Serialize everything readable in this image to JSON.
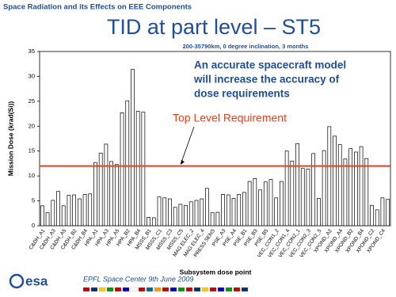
{
  "header": "Space Radiation and its Effects on EEE Components",
  "footer": "EPFL Space Center 9th June 2009",
  "logo": "esa",
  "chart_data": {
    "type": "bar",
    "title": "TID at part level – ST5",
    "subtitle": "200-35790km, 0 degree inclination, 3 months",
    "x_label": "Subsystem dose point",
    "y_label": "Mission Dose (krad(Si))",
    "annotation_lines": [
      "An accurate spacecraft model",
      "will increase the accuracy of",
      "dose requirements"
    ],
    "requirement": {
      "label": "Top Level Requirement",
      "value": 12,
      "color": "#e8401c"
    },
    "categories": [
      "C&DH_A1",
      null,
      "C&DH_A3",
      null,
      "C&DH_A5",
      null,
      "C&DH_B2",
      null,
      "C&DH_B4",
      null,
      "HPA_A1",
      null,
      "HPA_A3",
      null,
      "HPA_A5",
      null,
      "HPA_B2",
      null,
      "HPA_B4",
      null,
      "MSSS_B1",
      null,
      "MSSS_C1",
      null,
      "MSSS_C3",
      null,
      "MSSS_C5",
      null,
      "MAG ELEC_2",
      null,
      "MAG ELEC_4",
      null,
      "PRESS SENS",
      null,
      "PSE_A3",
      null,
      "PSE_A4",
      null,
      "PSE_B1",
      null,
      "PSE_B3",
      null,
      "PSE_B5",
      null,
      "VEC_CON1_2",
      null,
      "VEC_CON1_4",
      null,
      "VEC_CON2_1",
      null,
      "VEC_CON2_3",
      null,
      "VEC_CON2_5",
      null,
      "XPOND_A2",
      null,
      "XPOND_A4",
      null,
      "XPOND_B2",
      null,
      "XPOND_B4",
      null,
      "XPOND_C2",
      null,
      "XPOND_C4",
      null
    ],
    "values": [
      4.0,
      2.6,
      5.1,
      6.9,
      4.0,
      6.1,
      6.2,
      5.4,
      6.3,
      6.4,
      12.7,
      14.6,
      16.4,
      12.9,
      12.3,
      22.7,
      25.1,
      31.4,
      23.0,
      22.8,
      1.7,
      1.6,
      5.8,
      5.6,
      5.4,
      3.7,
      4.3,
      4.1,
      4.8,
      5.1,
      5.4,
      7.5,
      2.6,
      2.7,
      6.3,
      6.2,
      5.5,
      6.3,
      6.7,
      8.9,
      9.5,
      7.2,
      8.8,
      9.3,
      5.6,
      8.9,
      15.0,
      13.0,
      16.5,
      11.5,
      11.4,
      14.5,
      5.5,
      15.1,
      19.9,
      18.0,
      16.3,
      13.4,
      15.5,
      14.8,
      15.9,
      13.5,
      4.1,
      3.2,
      5.6,
      5.3
    ],
    "color": "#ffffff",
    "ylim": [
      0,
      35
    ],
    "yticks": [
      0,
      5,
      10,
      15,
      20,
      25,
      30,
      35
    ],
    "grid": false
  }
}
